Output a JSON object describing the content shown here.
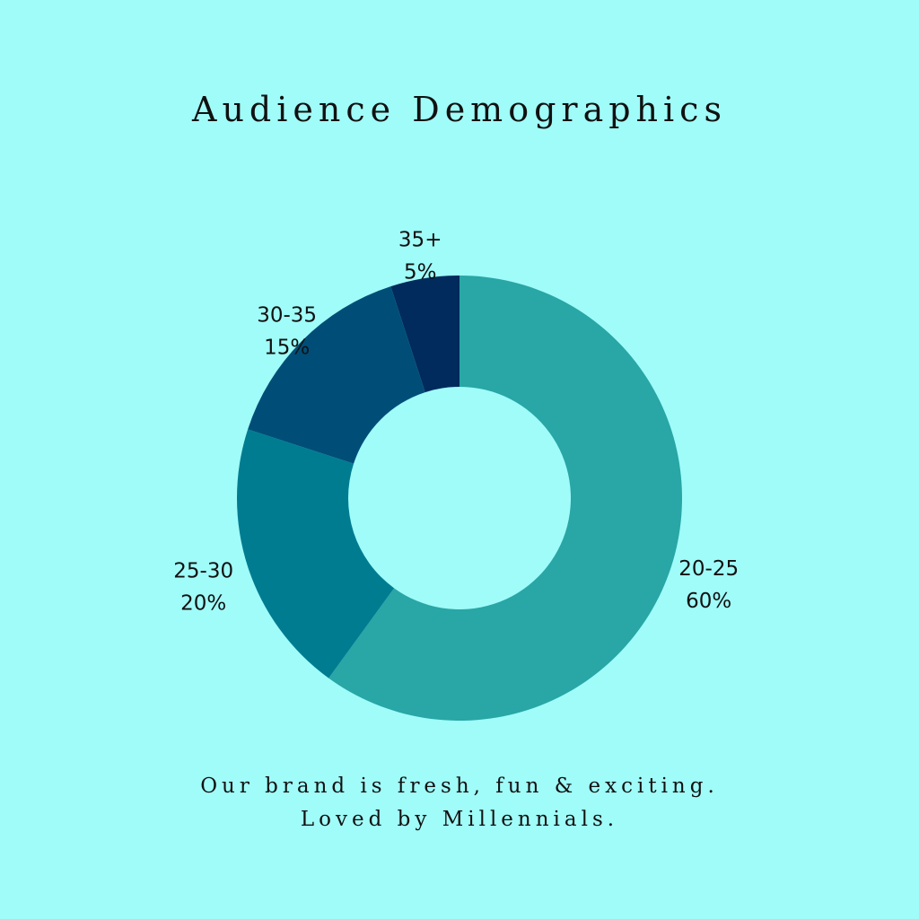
{
  "chart_data": {
    "type": "pie",
    "variant": "donut",
    "title": "Audience Demographics",
    "slices": [
      {
        "label": "20-25",
        "value": 60,
        "display": "60%",
        "color": "#29a6a6"
      },
      {
        "label": "25-30",
        "value": 20,
        "display": "20%",
        "color": "#007c91"
      },
      {
        "label": "30-35",
        "value": 15,
        "display": "15%",
        "color": "#004e78"
      },
      {
        "label": "35+",
        "value": 5,
        "display": "5%",
        "color": "#002b5c"
      }
    ],
    "start": "12 o'clock",
    "direction": "clockwise",
    "legend": "none"
  },
  "caption": {
    "line1": "Our brand is fresh, fun & exciting.",
    "line2": "Loved by Millennials."
  },
  "background_color": "#a0fcf9"
}
